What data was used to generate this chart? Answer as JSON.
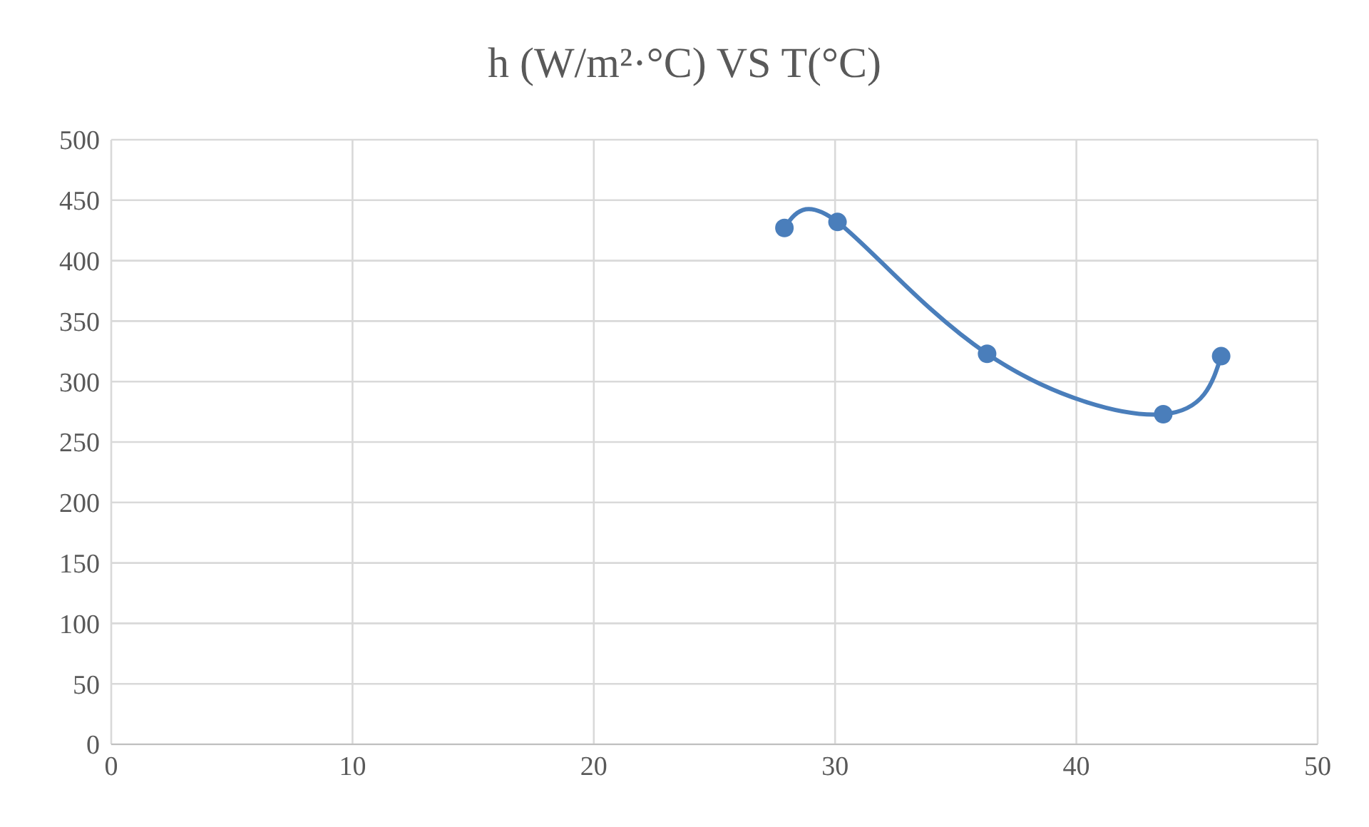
{
  "chart_data": {
    "type": "line",
    "title": "h (W/m²·°C) VS T(°C)",
    "x": [
      27.9,
      30.1,
      36.3,
      43.6,
      46.0
    ],
    "series": [
      {
        "color": "#4a7ebb",
        "values": [
          427,
          432,
          323,
          273,
          321
        ]
      }
    ],
    "xlim": [
      0,
      50
    ],
    "xticks": [
      0,
      10,
      20,
      30,
      40,
      50
    ],
    "ylim": [
      0,
      500
    ],
    "yticks": [
      0,
      50,
      100,
      150,
      200,
      250,
      300,
      350,
      400,
      450,
      500
    ],
    "grid": true,
    "marker": "circle",
    "line_style": "solid"
  }
}
